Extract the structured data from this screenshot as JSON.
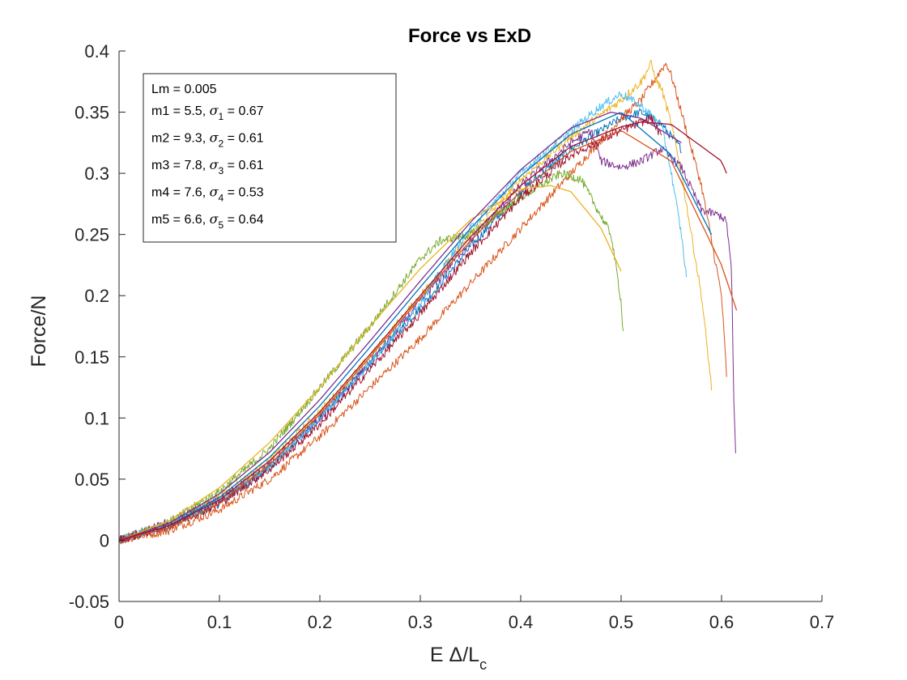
{
  "chart_data": {
    "type": "line",
    "title": "Force vs ExD",
    "xlabel": "E Δ/L",
    "xlabel_subscript": "c",
    "ylabel": "Force/N",
    "xlim": [
      0,
      0.7
    ],
    "ylim": [
      -0.05,
      0.4
    ],
    "xticks": [
      "0",
      "0.1",
      "0.2",
      "0.3",
      "0.4",
      "0.5",
      "0.6",
      "0.7"
    ],
    "yticks": [
      "-0.05",
      "0",
      "0.05",
      "0.1",
      "0.15",
      "0.2",
      "0.25",
      "0.3",
      "0.35",
      "0.4"
    ],
    "grid": false,
    "legend_placement": "top-left",
    "annotation": {
      "header": "Lm = 0.005",
      "lines": [
        {
          "m": "m1 = 5.5, ",
          "sigma": "σ",
          "sub": "1",
          "val": " = 0.67"
        },
        {
          "m": "m2 = 9.3, ",
          "sigma": "σ",
          "sub": "2",
          "val": " = 0.61"
        },
        {
          "m": "m3 = 7.8, ",
          "sigma": "σ",
          "sub": "3",
          "val": " = 0.61"
        },
        {
          "m": "m4 = 7.6, ",
          "sigma": "σ",
          "sub": "4",
          "val": " = 0.53"
        },
        {
          "m": "m5 = 6.6, ",
          "sigma": "σ",
          "sub": "5",
          "val": " = 0.64"
        }
      ]
    },
    "measured_series": [
      {
        "color": "#0072BD",
        "x": [
          0,
          0.05,
          0.1,
          0.15,
          0.2,
          0.25,
          0.3,
          0.35,
          0.4,
          0.45,
          0.48,
          0.5,
          0.52,
          0.54,
          0.56
        ],
        "y": [
          0,
          0.012,
          0.03,
          0.06,
          0.1,
          0.145,
          0.19,
          0.24,
          0.285,
          0.32,
          0.335,
          0.345,
          0.35,
          0.34,
          0.32
        ]
      },
      {
        "color": "#D95319",
        "x": [
          0,
          0.05,
          0.1,
          0.15,
          0.2,
          0.25,
          0.3,
          0.35,
          0.4,
          0.45,
          0.5,
          0.52,
          0.54,
          0.545,
          0.55,
          0.56,
          0.58,
          0.6,
          0.605
        ],
        "y": [
          0,
          0.008,
          0.025,
          0.05,
          0.085,
          0.125,
          0.165,
          0.21,
          0.255,
          0.3,
          0.345,
          0.36,
          0.385,
          0.39,
          0.38,
          0.35,
          0.29,
          0.2,
          0.135
        ]
      },
      {
        "color": "#EDB120",
        "x": [
          0,
          0.05,
          0.1,
          0.15,
          0.2,
          0.25,
          0.3,
          0.35,
          0.4,
          0.45,
          0.5,
          0.52,
          0.53,
          0.535,
          0.54,
          0.55,
          0.56,
          0.57,
          0.58,
          0.59
        ],
        "y": [
          0,
          0.014,
          0.035,
          0.065,
          0.105,
          0.15,
          0.2,
          0.25,
          0.295,
          0.33,
          0.36,
          0.375,
          0.39,
          0.375,
          0.37,
          0.34,
          0.3,
          0.25,
          0.2,
          0.125
        ]
      },
      {
        "color": "#7E2F8E",
        "x": [
          0,
          0.05,
          0.1,
          0.15,
          0.2,
          0.25,
          0.3,
          0.35,
          0.4,
          0.45,
          0.47,
          0.48,
          0.5,
          0.52,
          0.54,
          0.56,
          0.58,
          0.6,
          0.605,
          0.61,
          0.612,
          0.614
        ],
        "y": [
          0,
          0.015,
          0.033,
          0.062,
          0.1,
          0.145,
          0.195,
          0.245,
          0.29,
          0.325,
          0.335,
          0.31,
          0.305,
          0.31,
          0.32,
          0.305,
          0.27,
          0.265,
          0.26,
          0.22,
          0.12,
          0.07
        ]
      },
      {
        "color": "#77AC30",
        "x": [
          0,
          0.05,
          0.1,
          0.15,
          0.2,
          0.25,
          0.3,
          0.32,
          0.35,
          0.4,
          0.44,
          0.46,
          0.48,
          0.49,
          0.5,
          0.502
        ],
        "y": [
          0,
          0.015,
          0.04,
          0.075,
          0.125,
          0.175,
          0.23,
          0.245,
          0.25,
          0.28,
          0.3,
          0.295,
          0.265,
          0.25,
          0.195,
          0.17
        ]
      },
      {
        "color": "#4DBEEE",
        "x": [
          0,
          0.05,
          0.1,
          0.15,
          0.2,
          0.25,
          0.3,
          0.35,
          0.4,
          0.45,
          0.48,
          0.5,
          0.52,
          0.54,
          0.55,
          0.56,
          0.565
        ],
        "y": [
          0,
          0.013,
          0.032,
          0.06,
          0.1,
          0.145,
          0.195,
          0.255,
          0.3,
          0.335,
          0.355,
          0.365,
          0.355,
          0.34,
          0.3,
          0.25,
          0.215
        ]
      },
      {
        "color": "#A2142F",
        "x": [
          0,
          0.05,
          0.1,
          0.15,
          0.2,
          0.25,
          0.3,
          0.35,
          0.4,
          0.45,
          0.5,
          0.53,
          0.54
        ],
        "y": [
          0,
          0.012,
          0.03,
          0.058,
          0.095,
          0.14,
          0.185,
          0.235,
          0.28,
          0.315,
          0.335,
          0.345,
          0.33
        ]
      }
    ],
    "fit_series": [
      {
        "color": "#0072BD",
        "x": [
          0,
          0.05,
          0.1,
          0.15,
          0.2,
          0.25,
          0.3,
          0.35,
          0.4,
          0.45,
          0.5,
          0.55,
          0.59
        ],
        "y": [
          0,
          0.012,
          0.035,
          0.068,
          0.11,
          0.158,
          0.207,
          0.255,
          0.298,
          0.332,
          0.35,
          0.315,
          0.25
        ]
      },
      {
        "color": "#D95319",
        "x": [
          0,
          0.05,
          0.1,
          0.15,
          0.2,
          0.25,
          0.3,
          0.35,
          0.4,
          0.45,
          0.5,
          0.55,
          0.6,
          0.615
        ],
        "y": [
          0,
          0.01,
          0.03,
          0.062,
          0.103,
          0.15,
          0.198,
          0.245,
          0.285,
          0.318,
          0.335,
          0.31,
          0.225,
          0.188
        ]
      },
      {
        "color": "#EDB120",
        "x": [
          0,
          0.05,
          0.1,
          0.15,
          0.2,
          0.25,
          0.3,
          0.35,
          0.4,
          0.43,
          0.45,
          0.48,
          0.5
        ],
        "y": [
          0,
          0.016,
          0.043,
          0.08,
          0.125,
          0.175,
          0.222,
          0.262,
          0.287,
          0.29,
          0.285,
          0.255,
          0.22
        ]
      },
      {
        "color": "#7E2F8E",
        "x": [
          0,
          0.05,
          0.1,
          0.15,
          0.2,
          0.25,
          0.3,
          0.35,
          0.4,
          0.45,
          0.49,
          0.52,
          0.56
        ],
        "y": [
          0,
          0.014,
          0.038,
          0.072,
          0.115,
          0.163,
          0.212,
          0.26,
          0.303,
          0.337,
          0.35,
          0.345,
          0.325
        ]
      },
      {
        "color": "#A2142F",
        "x": [
          0,
          0.05,
          0.1,
          0.15,
          0.2,
          0.25,
          0.3,
          0.35,
          0.4,
          0.45,
          0.5,
          0.52,
          0.55,
          0.6,
          0.605
        ],
        "y": [
          0,
          0.012,
          0.033,
          0.065,
          0.105,
          0.152,
          0.2,
          0.248,
          0.29,
          0.322,
          0.338,
          0.342,
          0.34,
          0.31,
          0.3
        ]
      }
    ]
  }
}
